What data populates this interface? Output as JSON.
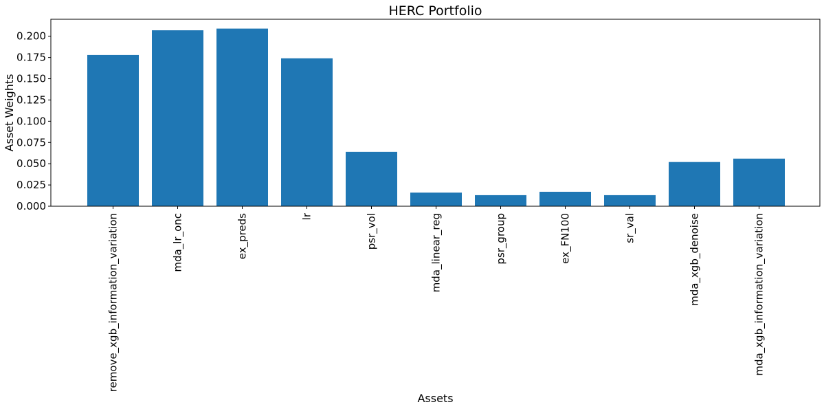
{
  "chart_data": {
    "type": "bar",
    "title": "HERC Portfolio",
    "xlabel": "Assets",
    "ylabel": "Asset Weights",
    "categories": [
      "remove_xgb_information_variation",
      "mda_lr_onc",
      "ex_preds",
      "lr",
      "psr_vol",
      "mda_linear_reg",
      "psr_group",
      "ex_FN100",
      "sr_val",
      "mda_xgb_denoise",
      "mda_xgb_information_variation"
    ],
    "values": [
      0.178,
      0.207,
      0.209,
      0.174,
      0.064,
      0.016,
      0.013,
      0.017,
      0.013,
      0.052,
      0.056
    ],
    "ylim": [
      0,
      0.22
    ],
    "yticks": [
      0.0,
      0.025,
      0.05,
      0.075,
      0.1,
      0.125,
      0.15,
      0.175,
      0.2
    ],
    "ytick_labels": [
      "0.000",
      "0.025",
      "0.050",
      "0.075",
      "0.100",
      "0.125",
      "0.150",
      "0.175",
      "0.200"
    ],
    "bar_color": "#1f77b4",
    "grid": false,
    "legend": false
  }
}
